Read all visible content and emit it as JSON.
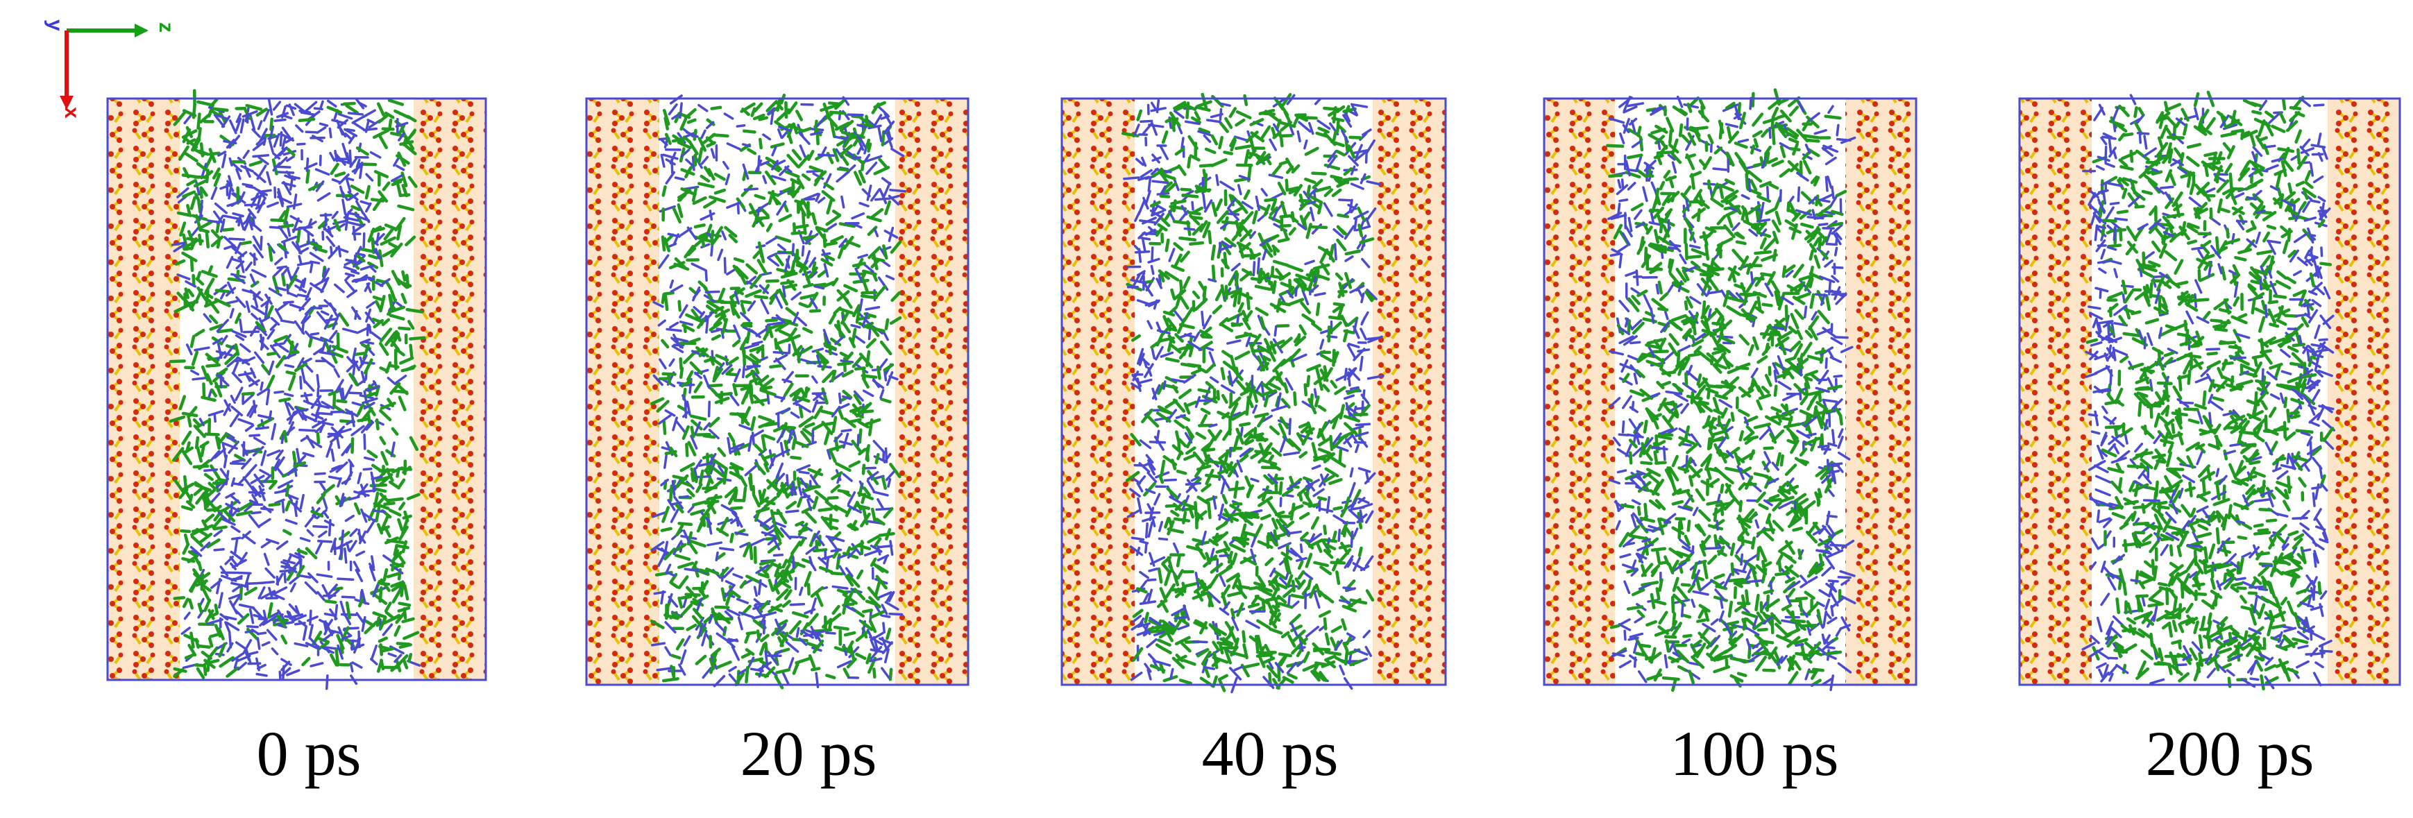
{
  "axes": {
    "y_label": "y",
    "z_label": "z",
    "x_label": "x",
    "colors": {
      "y": "#3a3ad6",
      "z": "#14a014",
      "x": "#e01010"
    }
  },
  "colors": {
    "frame": "#4a4ad0",
    "wall_bg": "#fbe4c7",
    "wall_dot": "#d42a10",
    "wall_bond": "#e8c000",
    "blue_molecule": "#4b4bd2",
    "green_molecule": "#1f9a1f"
  },
  "panels": [
    {
      "label": "0 ps",
      "green_distribution": "wall-adjacent"
    },
    {
      "label": "20 ps",
      "green_distribution": "mixed"
    },
    {
      "label": "40 ps",
      "green_distribution": "central"
    },
    {
      "label": "100 ps",
      "green_distribution": "central"
    },
    {
      "label": "200 ps",
      "green_distribution": "central"
    }
  ]
}
